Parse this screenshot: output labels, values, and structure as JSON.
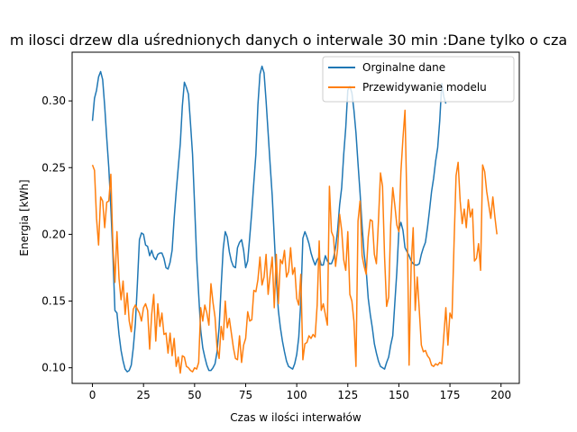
{
  "chart_data": {
    "type": "line",
    "title": "m ilosci drzew dla uśrednionych danych o interwale 30 min :Dane tylko o cza",
    "xlabel": "Czas w ilości interwałów",
    "ylabel": "Energia [kWh]",
    "xlim": [
      -9.95,
      208.95
    ],
    "ylim": [
      0.0883,
      0.3365
    ],
    "xticks": [
      0,
      25,
      50,
      75,
      100,
      125,
      150,
      175,
      200
    ],
    "yticks": [
      0.1,
      0.15,
      0.2,
      0.25,
      0.3
    ],
    "ytick_labels": [
      "0.10",
      "0.15",
      "0.20",
      "0.25",
      "0.30"
    ],
    "grid": false,
    "legend_position": "top-right",
    "x_start": 0,
    "series": [
      {
        "name": "Orginalne dane",
        "color": "#1f77b4",
        "values": [
          0.285,
          0.302,
          0.308,
          0.318,
          0.322,
          0.316,
          0.296,
          0.272,
          0.25,
          0.22,
          0.185,
          0.143,
          0.141,
          0.125,
          0.113,
          0.105,
          0.099,
          0.097,
          0.098,
          0.102,
          0.115,
          0.133,
          0.163,
          0.196,
          0.201,
          0.2,
          0.192,
          0.191,
          0.184,
          0.188,
          0.183,
          0.181,
          0.185,
          0.186,
          0.186,
          0.182,
          0.175,
          0.174,
          0.179,
          0.188,
          0.212,
          0.232,
          0.25,
          0.268,
          0.296,
          0.314,
          0.31,
          0.305,
          0.283,
          0.26,
          0.222,
          0.183,
          0.155,
          0.128,
          0.115,
          0.108,
          0.102,
          0.098,
          0.098,
          0.1,
          0.103,
          0.112,
          0.13,
          0.161,
          0.189,
          0.202,
          0.198,
          0.187,
          0.18,
          0.176,
          0.175,
          0.19,
          0.194,
          0.196,
          0.188,
          0.175,
          0.18,
          0.198,
          0.217,
          0.239,
          0.26,
          0.297,
          0.32,
          0.326,
          0.321,
          0.3,
          0.276,
          0.252,
          0.229,
          0.198,
          0.167,
          0.143,
          0.13,
          0.12,
          0.112,
          0.105,
          0.101,
          0.1,
          0.099,
          0.103,
          0.11,
          0.123,
          0.15,
          0.197,
          0.202,
          0.198,
          0.193,
          0.186,
          0.181,
          0.177,
          0.181,
          0.183,
          0.177,
          0.177,
          0.184,
          0.18,
          0.178,
          0.178,
          0.182,
          0.19,
          0.203,
          0.222,
          0.235,
          0.26,
          0.28,
          0.308,
          0.311,
          0.306,
          0.293,
          0.276,
          0.253,
          0.231,
          0.206,
          0.185,
          0.173,
          0.152,
          0.14,
          0.13,
          0.118,
          0.111,
          0.105,
          0.101,
          0.1,
          0.099,
          0.104,
          0.108,
          0.117,
          0.124,
          0.148,
          0.172,
          0.203,
          0.209,
          0.203,
          0.19,
          0.187,
          0.184,
          0.18,
          0.178,
          0.177,
          0.177,
          0.178,
          0.185,
          0.19,
          0.194,
          0.205,
          0.218,
          0.232,
          0.242,
          0.255,
          0.265,
          0.285,
          0.313,
          0.303,
          0.298
        ]
      },
      {
        "name": "Przewidywanie modelu",
        "color": "#ff7f0e",
        "values": [
          0.252,
          0.248,
          0.212,
          0.192,
          0.228,
          0.225,
          0.205,
          0.224,
          0.225,
          0.245,
          0.192,
          0.164,
          0.202,
          0.167,
          0.151,
          0.165,
          0.14,
          0.156,
          0.135,
          0.127,
          0.144,
          0.147,
          0.144,
          0.141,
          0.135,
          0.145,
          0.148,
          0.143,
          0.114,
          0.14,
          0.155,
          0.12,
          0.148,
          0.131,
          0.141,
          0.125,
          0.126,
          0.111,
          0.126,
          0.109,
          0.122,
          0.101,
          0.108,
          0.096,
          0.109,
          0.108,
          0.101,
          0.1,
          0.098,
          0.097,
          0.1,
          0.099,
          0.104,
          0.145,
          0.135,
          0.147,
          0.141,
          0.132,
          0.163,
          0.149,
          0.138,
          0.115,
          0.107,
          0.131,
          0.121,
          0.15,
          0.13,
          0.137,
          0.126,
          0.115,
          0.107,
          0.106,
          0.124,
          0.104,
          0.117,
          0.122,
          0.142,
          0.135,
          0.136,
          0.158,
          0.157,
          0.166,
          0.183,
          0.162,
          0.168,
          0.185,
          0.155,
          0.17,
          0.183,
          0.145,
          0.185,
          0.148,
          0.181,
          0.178,
          0.188,
          0.168,
          0.172,
          0.19,
          0.17,
          0.175,
          0.152,
          0.147,
          0.17,
          0.106,
          0.118,
          0.119,
          0.124,
          0.122,
          0.125,
          0.123,
          0.147,
          0.195,
          0.143,
          0.148,
          0.14,
          0.132,
          0.236,
          0.202,
          0.198,
          0.176,
          0.189,
          0.215,
          0.203,
          0.181,
          0.173,
          0.202,
          0.155,
          0.15,
          0.135,
          0.101,
          0.21,
          0.225,
          0.184,
          0.176,
          0.17,
          0.198,
          0.211,
          0.21,
          0.185,
          0.178,
          0.21,
          0.246,
          0.236,
          0.183,
          0.146,
          0.153,
          0.207,
          0.235,
          0.222,
          0.207,
          0.202,
          0.247,
          0.272,
          0.293,
          0.218,
          0.102,
          0.176,
          0.205,
          0.143,
          0.168,
          0.143,
          0.117,
          0.112,
          0.113,
          0.109,
          0.107,
          0.102,
          0.101,
          0.103,
          0.102,
          0.104,
          0.103,
          0.124,
          0.145,
          0.117,
          0.141,
          0.137,
          0.193,
          0.244,
          0.254,
          0.225,
          0.208,
          0.219,
          0.205,
          0.226,
          0.213,
          0.219,
          0.18,
          0.182,
          0.193,
          0.173,
          0.252,
          0.247,
          0.232,
          0.222,
          0.212,
          0.228,
          0.213,
          0.2
        ]
      }
    ]
  }
}
